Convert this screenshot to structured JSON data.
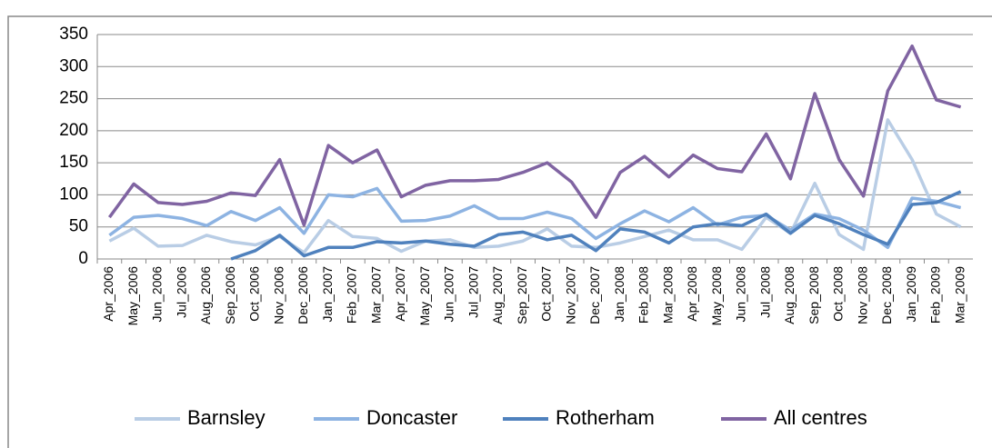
{
  "chart_data": {
    "type": "line",
    "categories": [
      "Apr_2006",
      "May_2006",
      "Jun_2006",
      "Jul_2006",
      "Aug_2006",
      "Sep_2006",
      "Oct_2006",
      "Nov_2006",
      "Dec_2006",
      "Jan_2007",
      "Feb_2007",
      "Mar_2007",
      "Apr_2007",
      "May_2007",
      "Jun_2007",
      "Jul_2007",
      "Aug_2007",
      "Sep_2007",
      "Oct_2007",
      "Nov_2007",
      "Dec_2007",
      "Jan_2008",
      "Feb_2008",
      "Mar_2008",
      "Apr_2008",
      "May_2008",
      "Jun_2008",
      "Jul_2008",
      "Aug_2008",
      "Sep_2008",
      "Oct_2008",
      "Nov_2008",
      "Dec_2008",
      "Jan_2009",
      "Feb_2009",
      "Mar_2009"
    ],
    "series": [
      {
        "name": "Barnsley",
        "color": "#b9cde5",
        "values": [
          28,
          48,
          20,
          21,
          37,
          27,
          22,
          35,
          10,
          60,
          35,
          32,
          12,
          28,
          30,
          18,
          20,
          28,
          47,
          20,
          18,
          25,
          35,
          45,
          30,
          30,
          15,
          65,
          40,
          118,
          38,
          15,
          217,
          155,
          70,
          50
        ]
      },
      {
        "name": "Doncaster",
        "color": "#8db3e2",
        "values": [
          37,
          65,
          68,
          63,
          52,
          74,
          60,
          80,
          40,
          100,
          97,
          110,
          59,
          60,
          67,
          83,
          63,
          63,
          73,
          63,
          32,
          55,
          75,
          58,
          80,
          53,
          65,
          68,
          45,
          70,
          63,
          45,
          18,
          95,
          90,
          80
        ]
      },
      {
        "name": "Rotherham",
        "color": "#4f81bd",
        "values": [
          null,
          null,
          null,
          null,
          null,
          0,
          13,
          37,
          5,
          18,
          18,
          27,
          25,
          28,
          23,
          20,
          38,
          42,
          30,
          37,
          13,
          47,
          42,
          25,
          50,
          55,
          52,
          70,
          40,
          68,
          55,
          38,
          23,
          85,
          88,
          105
        ]
      },
      {
        "name": "All centres",
        "color": "#8064a2",
        "values": [
          65,
          117,
          88,
          85,
          90,
          103,
          99,
          155,
          53,
          177,
          150,
          170,
          97,
          115,
          122,
          122,
          124,
          135,
          150,
          120,
          65,
          135,
          160,
          128,
          162,
          141,
          136,
          195,
          125,
          258,
          155,
          98,
          262,
          332,
          248,
          237
        ]
      }
    ],
    "ylim": [
      0,
      350
    ],
    "yticks": [
      0,
      50,
      100,
      150,
      200,
      250,
      300,
      350
    ],
    "grid": true
  }
}
